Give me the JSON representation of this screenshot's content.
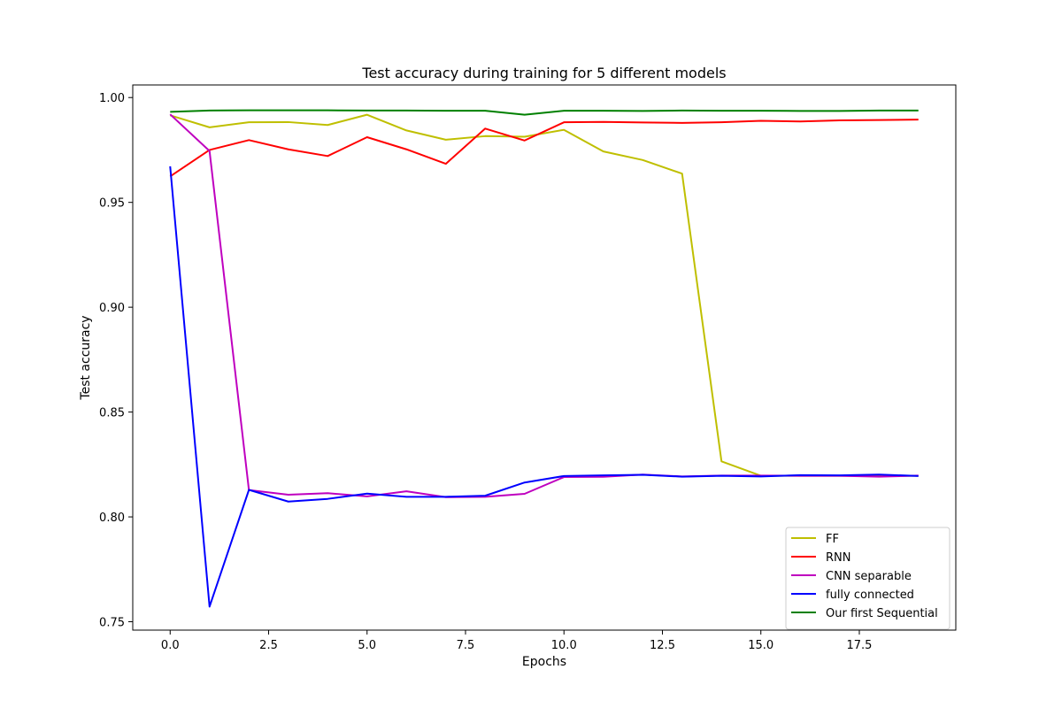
{
  "chart_data": {
    "type": "line",
    "title": "Test accuracy during training for 5 different models",
    "xlabel": "Epochs",
    "ylabel": "Test accuracy",
    "xlim": [
      -0.95,
      19.95
    ],
    "ylim": [
      0.746,
      1.006
    ],
    "xticks": [
      0.0,
      2.5,
      5.0,
      7.5,
      10.0,
      12.5,
      15.0,
      17.5
    ],
    "xtick_labels": [
      "0.0",
      "2.5",
      "5.0",
      "7.5",
      "10.0",
      "12.5",
      "15.0",
      "17.5"
    ],
    "yticks": [
      0.75,
      0.8,
      0.85,
      0.9,
      0.95,
      1.0
    ],
    "ytick_labels": [
      "0.75",
      "0.80",
      "0.85",
      "0.90",
      "0.95",
      "1.00"
    ],
    "grid": false,
    "legend_position": "lower-right",
    "x": [
      0,
      1,
      2,
      3,
      4,
      5,
      6,
      7,
      8,
      9,
      10,
      11,
      12,
      13,
      14,
      15,
      16,
      17,
      18,
      19
    ],
    "series": [
      {
        "name": "FF",
        "color": "#bfbf00",
        "values": [
          0.9915,
          0.9858,
          0.9882,
          0.9883,
          0.9869,
          0.9918,
          0.9843,
          0.9799,
          0.9816,
          0.9813,
          0.9846,
          0.9743,
          0.9702,
          0.9637,
          0.8265,
          0.8196,
          0.8196,
          0.8196,
          0.8196,
          0.8196
        ]
      },
      {
        "name": "RNN",
        "color": "#ff0000",
        "values": [
          0.9624,
          0.975,
          0.9797,
          0.9753,
          0.9721,
          0.9811,
          0.9753,
          0.9684,
          0.9852,
          0.9795,
          0.9882,
          0.9884,
          0.9881,
          0.9879,
          0.9882,
          0.9889,
          0.9886,
          0.9891,
          0.9893,
          0.9895
        ]
      },
      {
        "name": "CNN separable",
        "color": "#bf00bf",
        "values": [
          0.992,
          0.9745,
          0.8128,
          0.8106,
          0.8113,
          0.8098,
          0.8122,
          0.8094,
          0.8096,
          0.811,
          0.819,
          0.8191,
          0.8202,
          0.8193,
          0.8197,
          0.8197,
          0.8196,
          0.8196,
          0.8192,
          0.8197
        ]
      },
      {
        "name": "fully connected",
        "color": "#0000ff",
        "values": [
          0.9672,
          0.7572,
          0.8129,
          0.8073,
          0.8086,
          0.8111,
          0.8096,
          0.8096,
          0.8101,
          0.8164,
          0.8195,
          0.8198,
          0.8201,
          0.8192,
          0.8196,
          0.8193,
          0.8199,
          0.8198,
          0.8202,
          0.8195
        ]
      },
      {
        "name": "Our first Sequential",
        "color": "#008000",
        "values": [
          0.9932,
          0.9938,
          0.9939,
          0.9939,
          0.9939,
          0.9938,
          0.9938,
          0.9937,
          0.9937,
          0.9918,
          0.9937,
          0.9937,
          0.9936,
          0.9938,
          0.9937,
          0.9937,
          0.9936,
          0.9936,
          0.9938,
          0.9938
        ]
      }
    ]
  }
}
